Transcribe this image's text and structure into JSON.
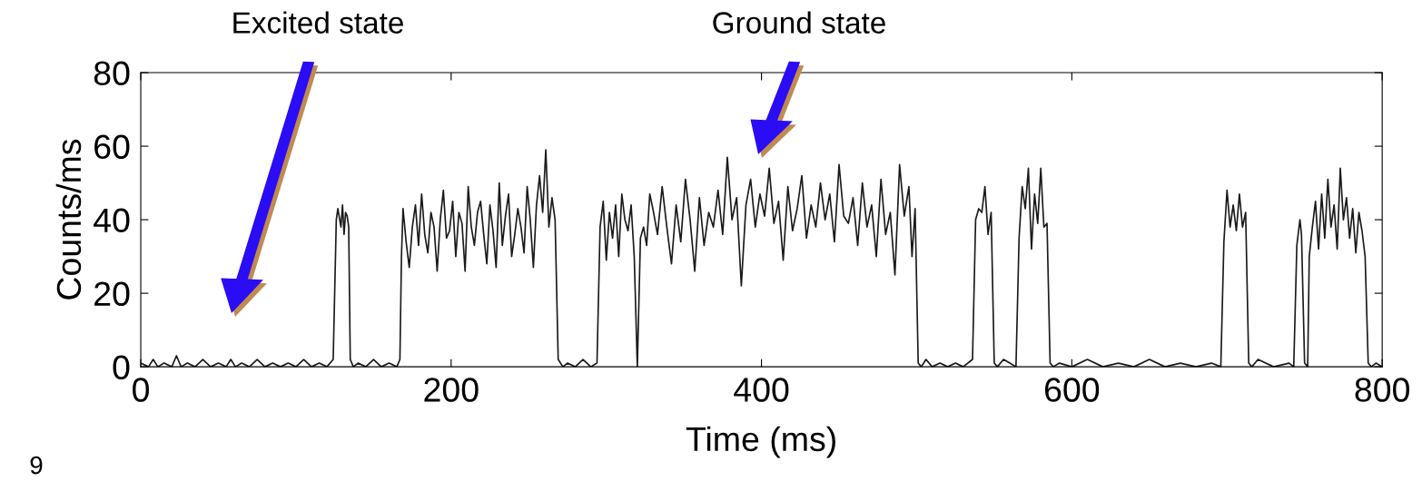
{
  "chart_data": {
    "type": "line",
    "xlabel": "Time (ms)",
    "ylabel": "Counts/ms",
    "xlim": [
      0,
      800
    ],
    "ylim": [
      0,
      80
    ],
    "xticks": [
      0,
      200,
      400,
      600,
      800
    ],
    "yticks": [
      0,
      20,
      40,
      60,
      80
    ],
    "grid": false,
    "legend": false,
    "marker": "none",
    "line_style": "solid",
    "series": [
      {
        "color": "#1a1a1a",
        "x": [
          0,
          5,
          8,
          11,
          15,
          20,
          23,
          26,
          30,
          35,
          40,
          45,
          50,
          55,
          58,
          61,
          65,
          70,
          75,
          80,
          85,
          90,
          95,
          100,
          105,
          110,
          115,
          120,
          124,
          126,
          127,
          129,
          130,
          131,
          132,
          133,
          134,
          135,
          137,
          140,
          145,
          150,
          155,
          160,
          165,
          167,
          168,
          169,
          171,
          173,
          175,
          177,
          179,
          181,
          183,
          185,
          187,
          189,
          191,
          193,
          195,
          197,
          199,
          201,
          203,
          205,
          207,
          209,
          211,
          213,
          215,
          217,
          219,
          221,
          223,
          225,
          227,
          229,
          231,
          233,
          235,
          237,
          239,
          241,
          243,
          245,
          247,
          249,
          251,
          253,
          255,
          257,
          259,
          261,
          263,
          265,
          267,
          269,
          272,
          275,
          280,
          285,
          290,
          294,
          296,
          298,
          300,
          302,
          304,
          306,
          308,
          310,
          312,
          314,
          316,
          318,
          320,
          322,
          324,
          326,
          328,
          330,
          333,
          336,
          339,
          342,
          345,
          348,
          351,
          354,
          357,
          360,
          363,
          366,
          369,
          372,
          375,
          378,
          381,
          384,
          387,
          390,
          393,
          396,
          399,
          402,
          405,
          408,
          411,
          414,
          417,
          420,
          423,
          426,
          429,
          432,
          435,
          438,
          441,
          444,
          447,
          450,
          453,
          456,
          459,
          462,
          465,
          468,
          471,
          474,
          477,
          480,
          483,
          486,
          489,
          492,
          495,
          497,
          499,
          501,
          503,
          506,
          510,
          515,
          520,
          525,
          530,
          536,
          538,
          540,
          542,
          544,
          546,
          548,
          550,
          552,
          556,
          560,
          564,
          566,
          568,
          570,
          572,
          574,
          576,
          578,
          580,
          582,
          584,
          586,
          588,
          592,
          600,
          610,
          620,
          630,
          640,
          650,
          660,
          670,
          680,
          690,
          696,
          698,
          700,
          702,
          704,
          706,
          708,
          710,
          712,
          714,
          716,
          720,
          730,
          740,
          743,
          745,
          747,
          748,
          750,
          752,
          753,
          755,
          757,
          759,
          761,
          763,
          765,
          767,
          769,
          771,
          773,
          775,
          777,
          779,
          781,
          783,
          785,
          787,
          789,
          791,
          793,
          796,
          800
        ],
        "values": [
          1,
          0,
          2,
          0,
          1,
          0,
          3,
          0,
          1,
          0,
          2,
          0,
          1,
          0,
          2,
          0,
          1,
          0,
          2,
          0,
          1,
          0,
          1,
          0,
          2,
          0,
          1,
          0,
          2,
          40,
          43,
          38,
          44,
          36,
          42,
          41,
          38,
          2,
          0,
          1,
          0,
          2,
          0,
          1,
          0,
          2,
          30,
          43,
          34,
          27,
          38,
          44,
          33,
          47,
          36,
          31,
          42,
          38,
          26,
          40,
          48,
          35,
          37,
          45,
          30,
          42,
          39,
          26,
          49,
          38,
          33,
          42,
          45,
          36,
          28,
          44,
          37,
          27,
          50,
          33,
          41,
          47,
          30,
          36,
          43,
          38,
          31,
          49,
          40,
          27,
          44,
          52,
          42,
          59,
          38,
          46,
          40,
          2,
          0,
          1,
          0,
          2,
          0,
          1,
          38,
          45,
          29,
          42,
          35,
          44,
          30,
          47,
          40,
          37,
          44,
          30,
          0,
          35,
          38,
          33,
          47,
          43,
          36,
          49,
          38,
          28,
          44,
          34,
          51,
          40,
          26,
          46,
          33,
          42,
          38,
          48,
          36,
          57,
          40,
          46,
          22,
          44,
          51,
          38,
          47,
          41,
          54,
          39,
          45,
          29,
          49,
          37,
          43,
          52,
          35,
          44,
          38,
          50,
          40,
          47,
          34,
          55,
          41,
          39,
          46,
          33,
          50,
          38,
          44,
          30,
          51,
          36,
          42,
          25,
          55,
          41,
          49,
          30,
          43,
          1,
          0,
          2,
          0,
          1,
          0,
          1,
          0,
          2,
          40,
          43,
          42,
          49,
          36,
          42,
          1,
          0,
          2,
          1,
          0,
          35,
          49,
          43,
          54,
          32,
          47,
          39,
          54,
          38,
          39,
          1,
          0,
          1,
          0,
          2,
          0,
          1,
          0,
          2,
          0,
          1,
          0,
          1,
          0,
          34,
          48,
          38,
          44,
          37,
          47,
          38,
          42,
          1,
          0,
          2,
          0,
          1,
          0,
          33,
          40,
          36,
          1,
          0,
          30,
          38,
          45,
          32,
          47,
          35,
          51,
          38,
          44,
          32,
          54,
          40,
          46,
          35,
          43,
          31,
          42,
          37,
          30,
          1,
          0,
          1,
          0
        ]
      }
    ],
    "annotations": [
      "Excited state",
      "Ground state",
      "9"
    ]
  }
}
